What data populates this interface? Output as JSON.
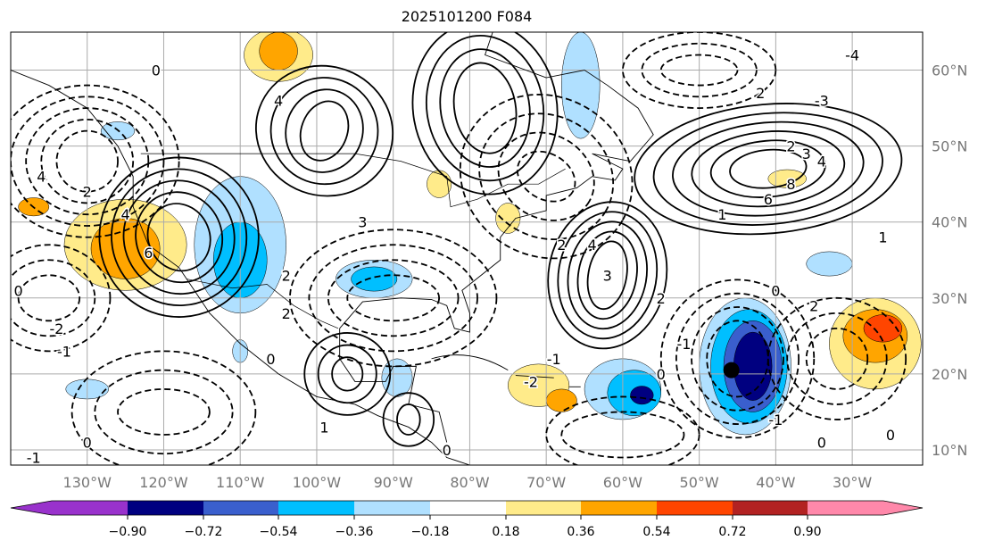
{
  "title": "2025101200 F084",
  "map": {
    "extent": {
      "lon_min": -140,
      "lon_max": -20.8,
      "lat_min": 8,
      "lat_max": 65
    },
    "lon_labels": [
      {
        "lon": -130,
        "text": "130°W"
      },
      {
        "lon": -120,
        "text": "120°W"
      },
      {
        "lon": -110,
        "text": "110°W"
      },
      {
        "lon": -100,
        "text": "100°W"
      },
      {
        "lon": -90,
        "text": "90°W"
      },
      {
        "lon": -80,
        "text": "80°W"
      },
      {
        "lon": -70,
        "text": "70°W"
      },
      {
        "lon": -60,
        "text": "60°W"
      },
      {
        "lon": -50,
        "text": "50°W"
      },
      {
        "lon": -40,
        "text": "40°W"
      },
      {
        "lon": -30,
        "text": "30°W"
      }
    ],
    "lat_labels": [
      {
        "lat": 60,
        "text": "60°N"
      },
      {
        "lat": 50,
        "text": "50°N"
      },
      {
        "lat": 40,
        "text": "40°N"
      },
      {
        "lat": 30,
        "text": "30°N"
      },
      {
        "lat": 20,
        "text": "20°N"
      },
      {
        "lat": 10,
        "text": "10°N"
      }
    ],
    "marker": {
      "lon": -45.8,
      "lat": 20.5
    },
    "contour_labels": [
      {
        "lon": -122,
        "lat": 36,
        "text": "6"
      },
      {
        "lon": -125,
        "lat": 41,
        "text": "4"
      },
      {
        "lon": -130,
        "lat": 44,
        "text": "2"
      },
      {
        "lon": -136,
        "lat": 46,
        "text": "4"
      },
      {
        "lon": -139,
        "lat": 31,
        "text": "0"
      },
      {
        "lon": -134,
        "lat": 26,
        "text": "-2"
      },
      {
        "lon": -133,
        "lat": 23,
        "text": "-1"
      },
      {
        "lon": -137,
        "lat": 9,
        "text": "-1"
      },
      {
        "lon": -130,
        "lat": 11,
        "text": "0"
      },
      {
        "lon": -121,
        "lat": 60,
        "text": "0"
      },
      {
        "lon": -105,
        "lat": 56,
        "text": "4"
      },
      {
        "lon": -104,
        "lat": 33,
        "text": "2"
      },
      {
        "lon": -94,
        "lat": 40,
        "text": "3"
      },
      {
        "lon": -104,
        "lat": 28,
        "text": "2"
      },
      {
        "lon": -106,
        "lat": 22,
        "text": "0"
      },
      {
        "lon": -99,
        "lat": 13,
        "text": "1"
      },
      {
        "lon": -83,
        "lat": 10,
        "text": "0"
      },
      {
        "lon": -64,
        "lat": 37,
        "text": "4"
      },
      {
        "lon": -62,
        "lat": 33,
        "text": "3"
      },
      {
        "lon": -68,
        "lat": 37,
        "text": "2"
      },
      {
        "lon": -55,
        "lat": 30,
        "text": "2"
      },
      {
        "lon": -52,
        "lat": 24,
        "text": "-1"
      },
      {
        "lon": -55,
        "lat": 20,
        "text": "0"
      },
      {
        "lon": -69,
        "lat": 22,
        "text": "-1"
      },
      {
        "lon": -72,
        "lat": 19,
        "text": "-2"
      },
      {
        "lon": -42,
        "lat": 57,
        "text": "2"
      },
      {
        "lon": -34,
        "lat": 56,
        "text": "-3"
      },
      {
        "lon": -30,
        "lat": 62,
        "text": "-4"
      },
      {
        "lon": -38,
        "lat": 50,
        "text": "2"
      },
      {
        "lon": -36,
        "lat": 49,
        "text": "3"
      },
      {
        "lon": -34,
        "lat": 48,
        "text": "4"
      },
      {
        "lon": -38,
        "lat": 45,
        "text": "8"
      },
      {
        "lon": -41,
        "lat": 43,
        "text": "6"
      },
      {
        "lon": -47,
        "lat": 41,
        "text": "1"
      },
      {
        "lon": -26,
        "lat": 38,
        "text": "1"
      },
      {
        "lon": -40,
        "lat": 31,
        "text": "0"
      },
      {
        "lon": -35,
        "lat": 29,
        "text": "2"
      },
      {
        "lon": -40,
        "lat": 14,
        "text": "-1"
      },
      {
        "lon": -34,
        "lat": 11,
        "text": "0"
      },
      {
        "lon": -25,
        "lat": 12,
        "text": "0"
      }
    ]
  },
  "colorbar": {
    "colors": [
      "#9932cc",
      "#000080",
      "#3a5fcd",
      "#00bfff",
      "#b0e0ff",
      "#ffffff",
      "#ffeb8a",
      "#ffa500",
      "#ff4500",
      "#b22222",
      "#ff88aa"
    ],
    "ticks": [
      "−0.90",
      "−0.72",
      "−0.54",
      "−0.36",
      "−0.18",
      "0.18",
      "0.36",
      "0.54",
      "0.72",
      "0.90"
    ]
  },
  "shading": [
    {
      "lon": -125,
      "lat": 37,
      "rx": 8,
      "ry": 6,
      "color": "#ffeb8a"
    },
    {
      "lon": -125,
      "lat": 36.5,
      "rx": 4.5,
      "ry": 4,
      "color": "#ffa500"
    },
    {
      "lon": -110,
      "lat": 37,
      "rx": 6,
      "ry": 9,
      "color": "#b0e0ff"
    },
    {
      "lon": -110,
      "lat": 35,
      "rx": 3.5,
      "ry": 5,
      "color": "#00bfff"
    },
    {
      "lon": -92.5,
      "lat": 32.5,
      "rx": 5,
      "ry": 2.5,
      "color": "#b0e0ff"
    },
    {
      "lon": -92.5,
      "lat": 32.5,
      "rx": 3,
      "ry": 1.6,
      "color": "#00bfff"
    },
    {
      "lon": -105,
      "lat": 62,
      "rx": 4.5,
      "ry": 3.5,
      "color": "#ffeb8a"
    },
    {
      "lon": -105,
      "lat": 62.5,
      "rx": 2.5,
      "ry": 2.5,
      "color": "#ffa500"
    },
    {
      "lon": -65.5,
      "lat": 58,
      "rx": 2.5,
      "ry": 7,
      "color": "#b0e0ff"
    },
    {
      "lon": -71,
      "lat": 18.5,
      "rx": 4,
      "ry": 2.8,
      "color": "#ffeb8a"
    },
    {
      "lon": -68,
      "lat": 16.5,
      "rx": 2,
      "ry": 1.5,
      "color": "#ffa500"
    },
    {
      "lon": -60,
      "lat": 18,
      "rx": 5,
      "ry": 4,
      "color": "#b0e0ff"
    },
    {
      "lon": -58.5,
      "lat": 17.5,
      "rx": 3.5,
      "ry": 3,
      "color": "#00bfff"
    },
    {
      "lon": -57.5,
      "lat": 17.2,
      "rx": 1.5,
      "ry": 1.2,
      "color": "#000080"
    },
    {
      "lon": -44,
      "lat": 21,
      "rx": 6,
      "ry": 9,
      "color": "#b0e0ff"
    },
    {
      "lon": -43.5,
      "lat": 21,
      "rx": 5,
      "ry": 7.5,
      "color": "#00bfff"
    },
    {
      "lon": -43,
      "lat": 21,
      "rx": 3.8,
      "ry": 6,
      "color": "#3a5fcd"
    },
    {
      "lon": -43,
      "lat": 21,
      "rx": 2.5,
      "ry": 4.5,
      "color": "#000080"
    },
    {
      "lon": -27,
      "lat": 24,
      "rx": 6,
      "ry": 6,
      "color": "#ffeb8a"
    },
    {
      "lon": -27,
      "lat": 25,
      "rx": 4.2,
      "ry": 3.5,
      "color": "#ffa500"
    },
    {
      "lon": -26,
      "lat": 26,
      "rx": 2.5,
      "ry": 1.8,
      "color": "#ff4500"
    },
    {
      "lon": -38.5,
      "lat": 45.7,
      "rx": 2.5,
      "ry": 1.2,
      "color": "#ffeb8a"
    },
    {
      "lon": -33,
      "lat": 34.5,
      "rx": 3,
      "ry": 1.6,
      "color": "#b0e0ff"
    },
    {
      "lon": -130,
      "lat": 18,
      "rx": 2.8,
      "ry": 1.3,
      "color": "#b0e0ff"
    },
    {
      "lon": -110,
      "lat": 23,
      "rx": 1,
      "ry": 1.5,
      "color": "#b0e0ff"
    },
    {
      "lon": -89.5,
      "lat": 19.5,
      "rx": 2,
      "ry": 2.5,
      "color": "#b0e0ff"
    },
    {
      "lon": -84,
      "lat": 45,
      "rx": 1.6,
      "ry": 1.8,
      "color": "#ffeb8a"
    },
    {
      "lon": -75,
      "lat": 40.5,
      "rx": 1.6,
      "ry": 2,
      "color": "#ffeb8a"
    },
    {
      "lon": -126,
      "lat": 52,
      "rx": 2.2,
      "ry": 1.2,
      "color": "#b0e0ff"
    },
    {
      "lon": -137,
      "lat": 42,
      "rx": 2,
      "ry": 1.2,
      "color": "#ffa500"
    }
  ]
}
